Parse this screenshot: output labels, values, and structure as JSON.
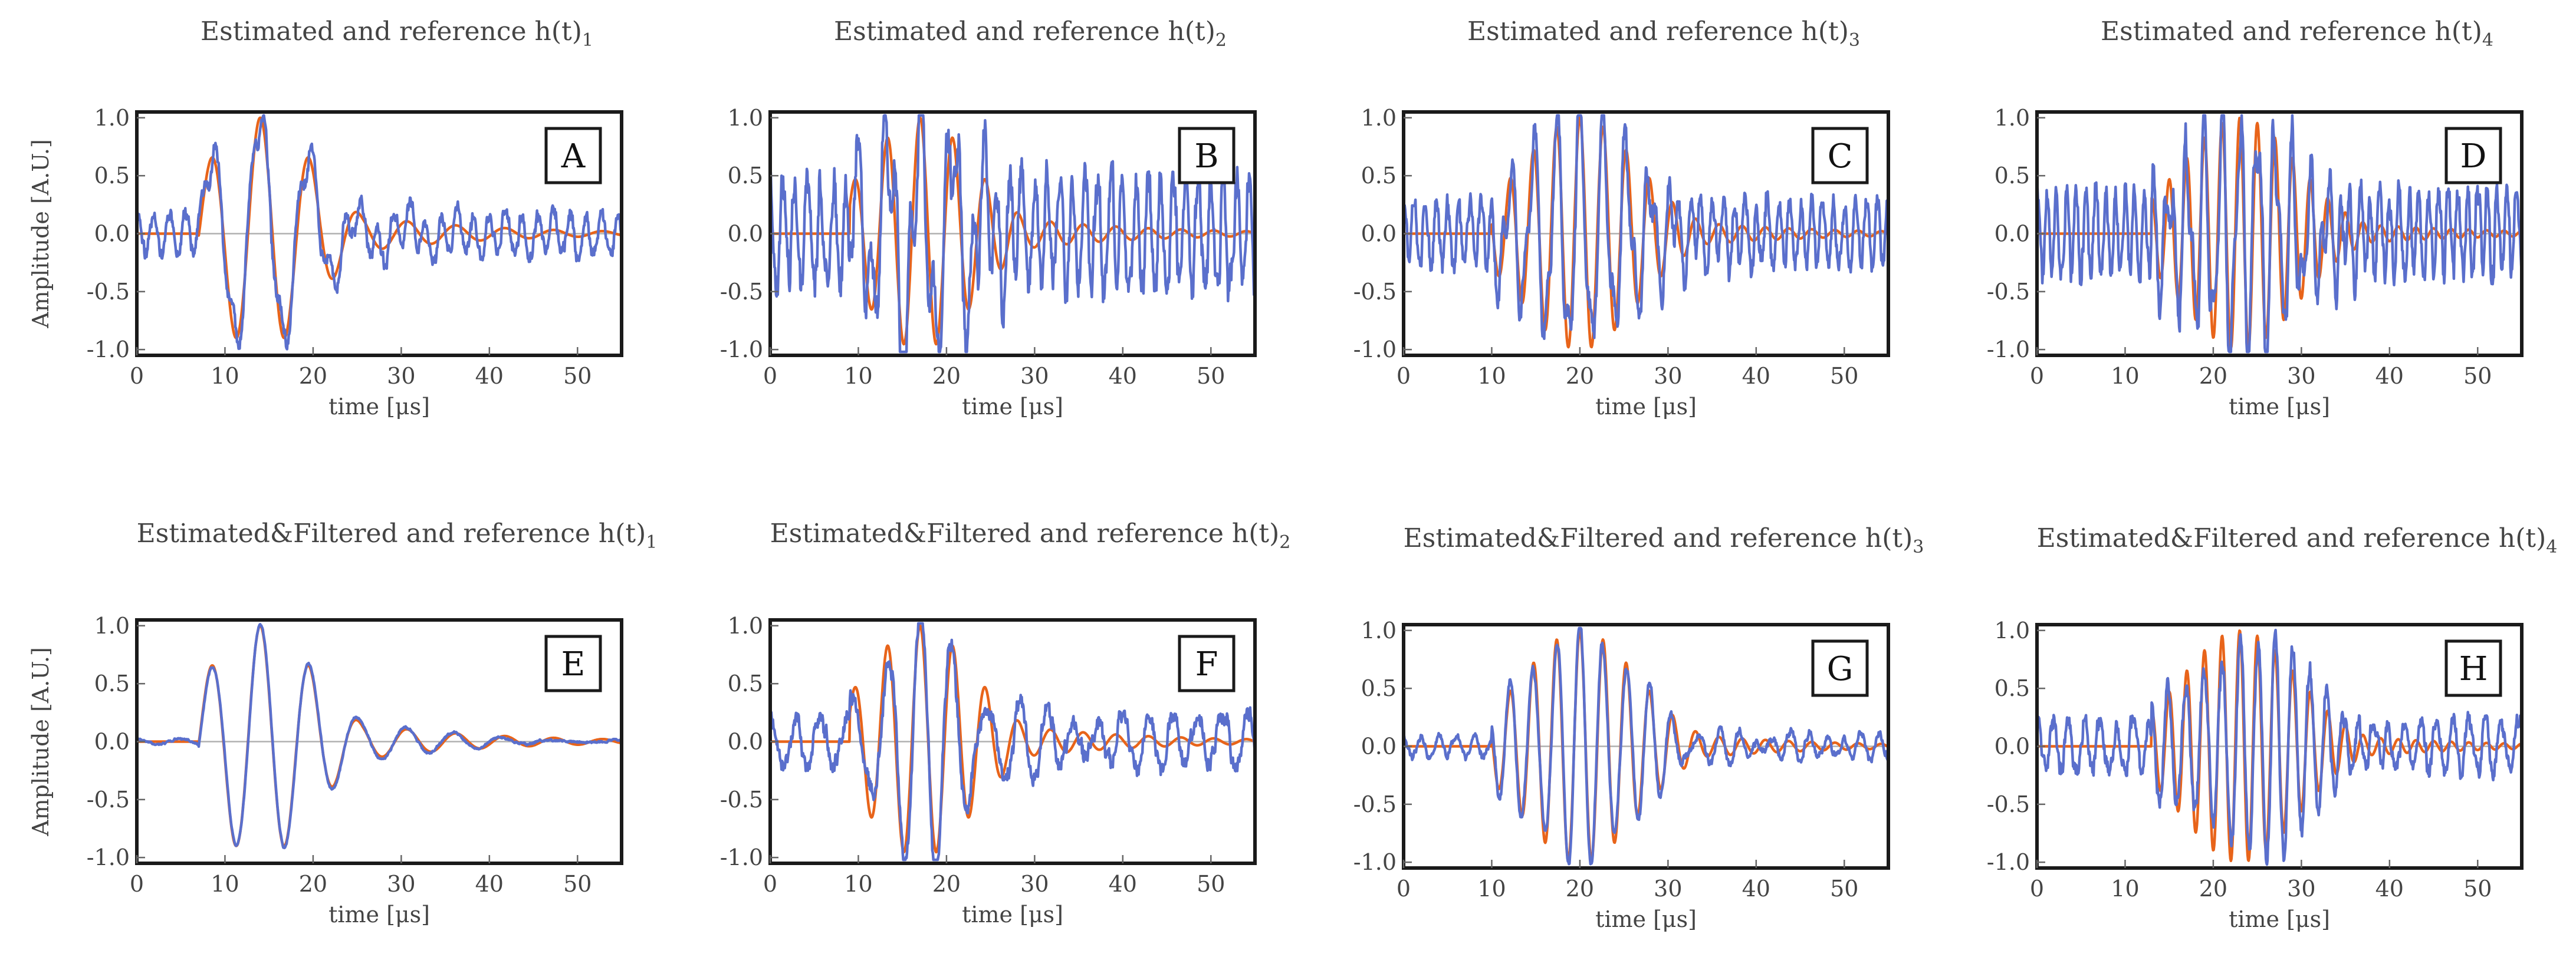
{
  "chart_data": [
    {
      "type": "line",
      "label": "A",
      "title_text": "Estimated and reference h(t)",
      "title_sub": "1",
      "ylabel": "Amplitude [A.U.]",
      "xlabel": "time [μs]",
      "xlim": [
        0,
        55
      ],
      "ylim": [
        -1.05,
        1.05
      ],
      "xticks": [
        "0",
        "10",
        "20",
        "30",
        "40",
        "50"
      ],
      "yticks": [
        "1.0",
        "0.5",
        "0.0",
        "-0.5",
        "-1.0"
      ],
      "series": [
        {
          "name": "reference",
          "color": "#e8641a",
          "onset": 7,
          "center": 14,
          "sigma": 6,
          "freq": 0.18,
          "decay_tail": 0.35
        },
        {
          "name": "estimated",
          "color": "#5a6fcc",
          "noise": 0.22,
          "noise_freq": 0.55,
          "seed": 11
        }
      ]
    },
    {
      "type": "line",
      "label": "B",
      "title_text": "Estimated and reference h(t)",
      "title_sub": "2",
      "ylabel": "",
      "xlabel": "time [μs]",
      "xlim": [
        0,
        55
      ],
      "ylim": [
        -1.05,
        1.05
      ],
      "xticks": [
        "0",
        "10",
        "20",
        "30",
        "40",
        "50"
      ],
      "yticks": [
        "1.0",
        "0.5",
        "0.0",
        "-0.5",
        "-1.0"
      ],
      "series": [
        {
          "name": "reference",
          "color": "#e8641a",
          "onset": 9,
          "center": 17,
          "sigma": 6,
          "freq": 0.27,
          "decay_tail": 0.3
        },
        {
          "name": "estimated",
          "color": "#5a6fcc",
          "noise": 0.6,
          "noise_freq": 0.7,
          "seed": 23
        }
      ]
    },
    {
      "type": "line",
      "label": "C",
      "title_text": "Estimated and reference h(t)",
      "title_sub": "3",
      "ylabel": "",
      "xlabel": "time [μs]",
      "xlim": [
        0,
        55
      ],
      "ylim": [
        -1.05,
        1.05
      ],
      "xticks": [
        "0",
        "10",
        "20",
        "30",
        "40",
        "50"
      ],
      "yticks": [
        "1.0",
        "0.5",
        "0.0",
        "-0.5",
        "-1.0"
      ],
      "series": [
        {
          "name": "reference",
          "color": "#e8641a",
          "onset": 10,
          "center": 20,
          "sigma": 6.5,
          "freq": 0.38,
          "decay_tail": 0.25
        },
        {
          "name": "estimated",
          "color": "#5a6fcc",
          "noise": 0.35,
          "noise_freq": 0.8,
          "seed": 37
        }
      ]
    },
    {
      "type": "line",
      "label": "D",
      "title_text": "Estimated and reference h(t)",
      "title_sub": "4",
      "ylabel": "",
      "xlabel": "time [μs]",
      "xlim": [
        0,
        55
      ],
      "ylim": [
        -1.05,
        1.05
      ],
      "xticks": [
        "0",
        "10",
        "20",
        "30",
        "40",
        "50"
      ],
      "yticks": [
        "1.0",
        "0.5",
        "0.0",
        "-0.5",
        "-1.0"
      ],
      "series": [
        {
          "name": "reference",
          "color": "#e8641a",
          "onset": 13,
          "center": 23,
          "sigma": 6.5,
          "freq": 0.5,
          "decay_tail": 0.22
        },
        {
          "name": "estimated",
          "color": "#5a6fcc",
          "noise": 0.45,
          "noise_freq": 0.9,
          "seed": 53
        }
      ]
    },
    {
      "type": "line",
      "label": "E",
      "title_text": "Estimated&Filtered and reference h(t)",
      "title_sub": "1",
      "ylabel": "Amplitude [A.U.]",
      "xlabel": "time [μs]",
      "xlim": [
        0,
        55
      ],
      "ylim": [
        -1.05,
        1.05
      ],
      "xticks": [
        "0",
        "10",
        "20",
        "30",
        "40",
        "50"
      ],
      "yticks": [
        "1.0",
        "0.5",
        "0.0",
        "-0.5",
        "-1.0"
      ],
      "series": [
        {
          "name": "reference",
          "color": "#e8641a",
          "onset": 7,
          "center": 14,
          "sigma": 6,
          "freq": 0.18,
          "decay_tail": 0.35
        },
        {
          "name": "estimated",
          "color": "#5a6fcc",
          "noise": 0.03,
          "noise_freq": 0.2,
          "seed": 61
        }
      ]
    },
    {
      "type": "line",
      "label": "F",
      "title_text": "Estimated&Filtered and reference h(t)",
      "title_sub": "2",
      "ylabel": "",
      "xlabel": "time [μs]",
      "xlim": [
        0,
        55
      ],
      "ylim": [
        -1.05,
        1.05
      ],
      "xticks": [
        "0",
        "10",
        "20",
        "30",
        "40",
        "50"
      ],
      "yticks": [
        "1.0",
        "0.5",
        "0.0",
        "-0.5",
        "-1.0"
      ],
      "series": [
        {
          "name": "reference",
          "color": "#e8641a",
          "onset": 9,
          "center": 17,
          "sigma": 6,
          "freq": 0.27,
          "decay_tail": 0.3
        },
        {
          "name": "estimated",
          "color": "#5a6fcc",
          "noise": 0.28,
          "noise_freq": 0.35,
          "seed": 71
        }
      ]
    },
    {
      "type": "line",
      "label": "G",
      "title_text": "Estimated&Filtered and reference h(t)",
      "title_sub": "3",
      "ylabel": "",
      "xlabel": "time [μs]",
      "xlim": [
        0,
        55
      ],
      "ylim": [
        -1.05,
        1.05
      ],
      "xticks": [
        "0",
        "10",
        "20",
        "30",
        "40",
        "50"
      ],
      "yticks": [
        "1.0",
        "0.5",
        "0.0",
        "-0.5",
        "-1.0"
      ],
      "series": [
        {
          "name": "reference",
          "color": "#e8641a",
          "onset": 10,
          "center": 20,
          "sigma": 6.5,
          "freq": 0.38,
          "decay_tail": 0.25
        },
        {
          "name": "estimated",
          "color": "#5a6fcc",
          "noise": 0.12,
          "noise_freq": 0.5,
          "seed": 83
        }
      ]
    },
    {
      "type": "line",
      "label": "H",
      "title_text": "Estimated&Filtered and reference h(t)",
      "title_sub": "4",
      "ylabel": "",
      "xlabel": "time [μs]",
      "xlim": [
        0,
        55
      ],
      "ylim": [
        -1.05,
        1.05
      ],
      "xticks": [
        "0",
        "10",
        "20",
        "30",
        "40",
        "50"
      ],
      "yticks": [
        "1.0",
        "0.5",
        "0.0",
        "-0.5",
        "-1.0"
      ],
      "series": [
        {
          "name": "reference",
          "color": "#e8641a",
          "onset": 13,
          "center": 23,
          "sigma": 6.5,
          "freq": 0.5,
          "decay_tail": 0.22
        },
        {
          "name": "estimated",
          "color": "#5a6fcc",
          "noise": 0.28,
          "noise_freq": 0.55,
          "seed": 97
        }
      ]
    }
  ]
}
